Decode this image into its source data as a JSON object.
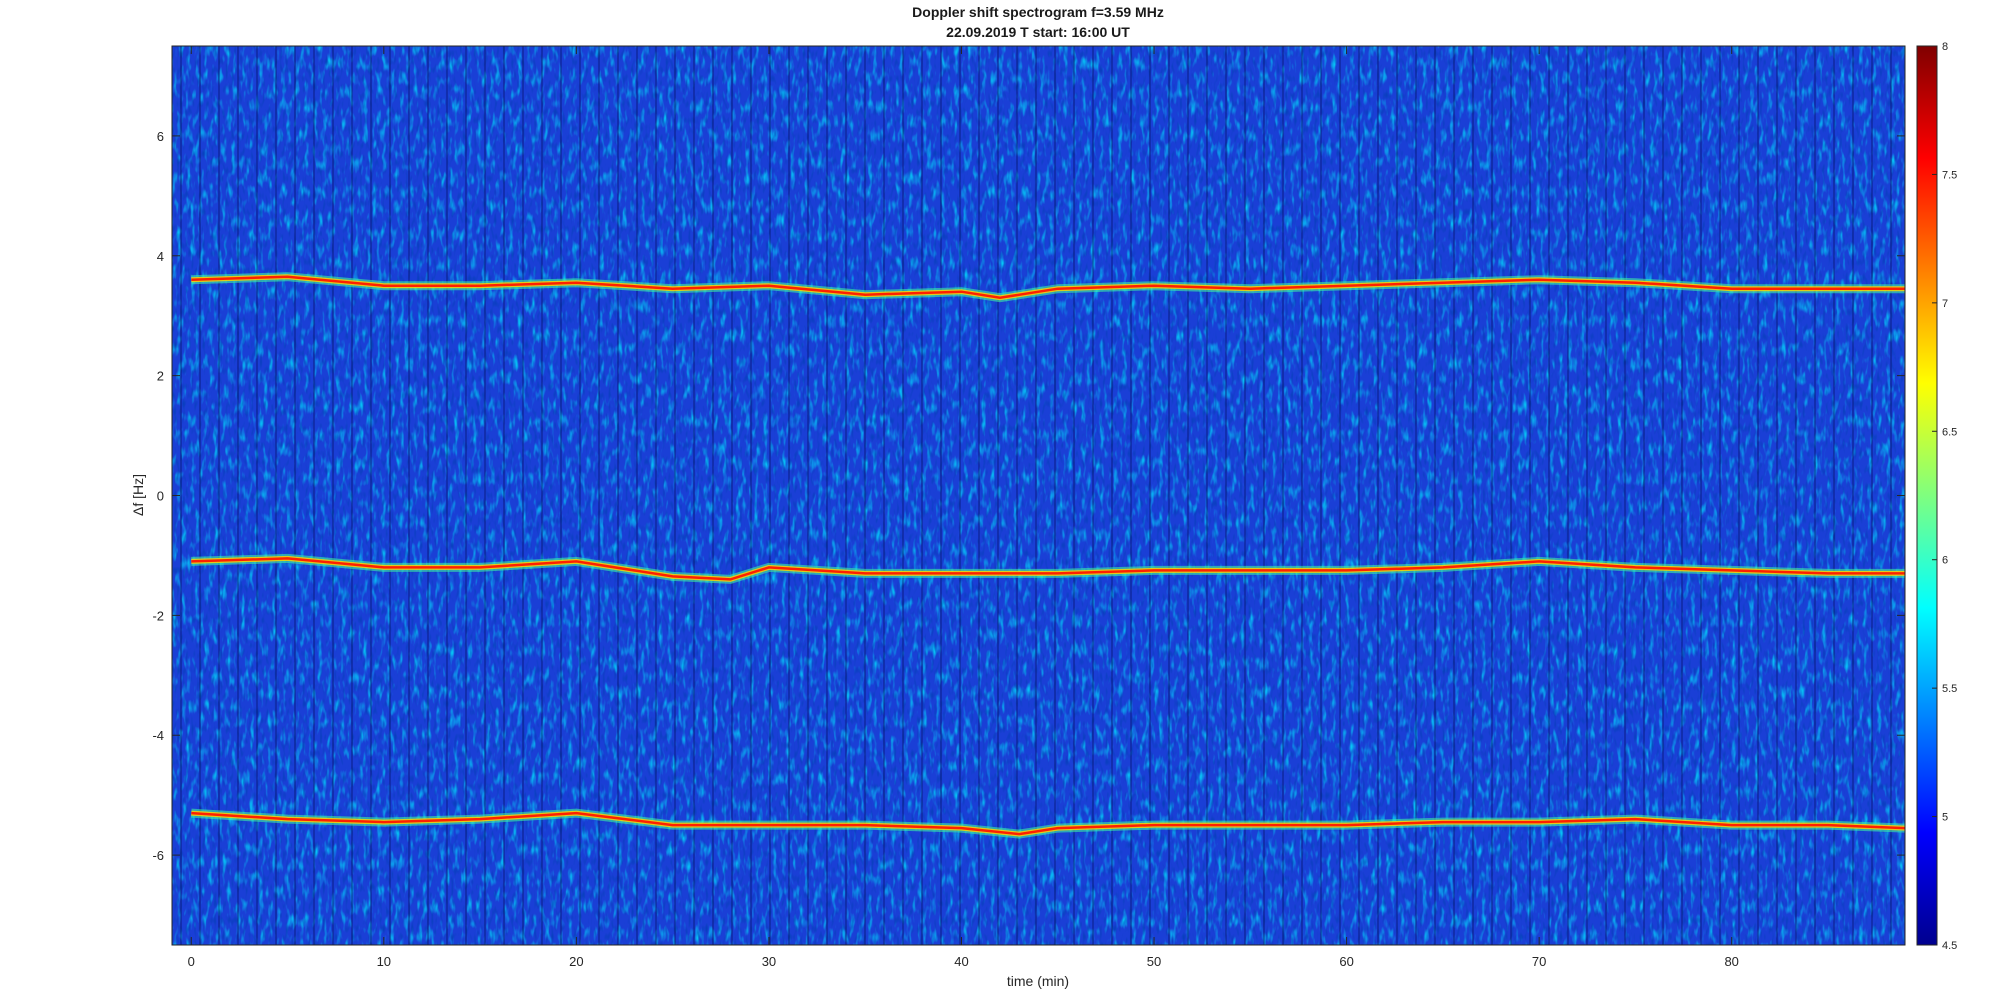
{
  "chart_data": {
    "type": "heatmap",
    "title": "Doppler shift spectrogram f=3.59 MHz",
    "subtitle": "22.09.2019    T start: 16:00 UT",
    "xlabel": "time (min)",
    "ylabel": "Δf [Hz]",
    "xlim": [
      -1,
      89
    ],
    "ylim": [
      -7.5,
      7.5
    ],
    "x_ticks": [
      0,
      10,
      20,
      30,
      40,
      50,
      60,
      70,
      80
    ],
    "y_ticks": [
      6,
      4,
      2,
      0,
      -2,
      -4,
      -6
    ],
    "colorbar": {
      "colormap": "jet",
      "range": [
        4.5,
        8
      ],
      "ticks": [
        "8",
        "7.5",
        "7",
        "6.5",
        "6",
        "5.5",
        "5",
        "4.5"
      ]
    },
    "series": [
      {
        "x": [
          0,
          5,
          10,
          15,
          20,
          25,
          30,
          35,
          40,
          42,
          45,
          50,
          55,
          60,
          65,
          70,
          75,
          80,
          85,
          89
        ],
        "values": [
          3.6,
          3.65,
          3.5,
          3.5,
          3.55,
          3.45,
          3.5,
          3.35,
          3.4,
          3.3,
          3.45,
          3.5,
          3.45,
          3.5,
          3.55,
          3.6,
          3.55,
          3.45,
          3.45,
          3.45
        ]
      },
      {
        "x": [
          0,
          5,
          10,
          15,
          20,
          25,
          28,
          30,
          35,
          40,
          45,
          50,
          55,
          60,
          65,
          70,
          75,
          80,
          85,
          89
        ],
        "values": [
          -1.1,
          -1.05,
          -1.2,
          -1.2,
          -1.1,
          -1.35,
          -1.4,
          -1.2,
          -1.3,
          -1.3,
          -1.3,
          -1.25,
          -1.25,
          -1.25,
          -1.2,
          -1.1,
          -1.2,
          -1.25,
          -1.3,
          -1.3
        ]
      },
      {
        "x": [
          0,
          5,
          10,
          15,
          20,
          25,
          30,
          35,
          40,
          43,
          45,
          50,
          55,
          60,
          65,
          70,
          75,
          80,
          85,
          89
        ],
        "values": [
          -5.3,
          -5.4,
          -5.45,
          -5.4,
          -5.3,
          -5.5,
          -5.5,
          -5.5,
          -5.55,
          -5.65,
          -5.55,
          -5.5,
          -5.5,
          -5.5,
          -5.45,
          -5.45,
          -5.4,
          -5.5,
          -5.5,
          -5.55
        ]
      }
    ]
  }
}
